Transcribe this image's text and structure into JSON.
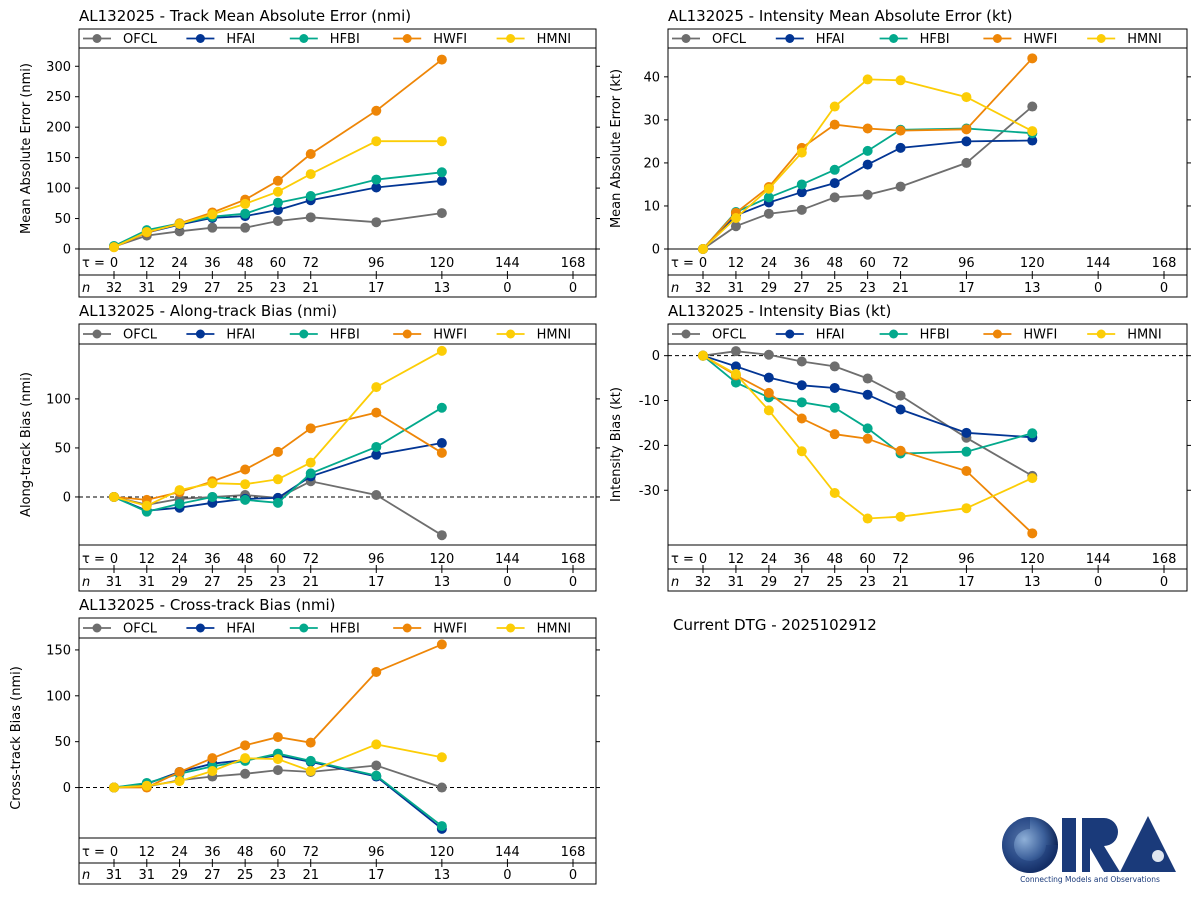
{
  "storm": "AL132025",
  "dtg_label": "Current DTG - 2025102912",
  "logo": {
    "name": "CIRA",
    "tagline": "Connecting Models and Observations"
  },
  "legend": [
    {
      "name": "OFCL",
      "color": "#6e6e6e"
    },
    {
      "name": "HFAI",
      "color": "#023594"
    },
    {
      "name": "HFBI",
      "color": "#03a98c"
    },
    {
      "name": "HWFI",
      "color": "#ee8607"
    },
    {
      "name": "HMNI",
      "color": "#fccd06"
    }
  ],
  "chart_data": [
    {
      "id": "track-mae",
      "type": "line",
      "title": "AL132025 - Track Mean Absolute Error (nmi)",
      "ylabel": "Mean Absolute Error (nmi)",
      "xlabel": "τ",
      "x": [
        0,
        12,
        24,
        36,
        48,
        60,
        72,
        96,
        120
      ],
      "xticks": [
        0,
        12,
        24,
        36,
        48,
        60,
        72,
        96,
        120,
        144,
        168
      ],
      "n": [
        32,
        31,
        29,
        27,
        25,
        23,
        21,
        17,
        13,
        0,
        0
      ],
      "xlim": [
        0,
        168
      ],
      "ylim": [
        0,
        330
      ],
      "yticks": [
        0,
        50,
        100,
        150,
        200,
        250,
        300
      ],
      "zero_line": false,
      "series": [
        {
          "name": "OFCL",
          "values": [
            4,
            22,
            29,
            35,
            35,
            46,
            52,
            44,
            59
          ]
        },
        {
          "name": "HFAI",
          "values": [
            4,
            27,
            40,
            51,
            54,
            64,
            80,
            101,
            112
          ]
        },
        {
          "name": "HFBI",
          "values": [
            5,
            31,
            42,
            53,
            58,
            76,
            87,
            114,
            126
          ]
        },
        {
          "name": "HWFI",
          "values": [
            3,
            27,
            42,
            60,
            81,
            112,
            156,
            227,
            311
          ]
        },
        {
          "name": "HMNI",
          "values": [
            3,
            28,
            41,
            57,
            74,
            94,
            123,
            177,
            177
          ]
        }
      ]
    },
    {
      "id": "intensity-mae",
      "type": "line",
      "title": "AL132025 - Intensity Mean Absolute Error (kt)",
      "ylabel": "Mean Absolute Error (kt)",
      "xlabel": "τ",
      "x": [
        0,
        12,
        24,
        36,
        48,
        60,
        72,
        96,
        120
      ],
      "xticks": [
        0,
        12,
        24,
        36,
        48,
        60,
        72,
        96,
        120,
        144,
        168
      ],
      "n": [
        32,
        31,
        29,
        27,
        25,
        23,
        21,
        17,
        13,
        0,
        0
      ],
      "xlim": [
        0,
        168
      ],
      "ylim": [
        0,
        46.7
      ],
      "yticks": [
        0,
        10,
        20,
        30,
        40
      ],
      "zero_line": false,
      "series": [
        {
          "name": "OFCL",
          "values": [
            0,
            5.3,
            8.2,
            9.1,
            12.0,
            12.6,
            14.5,
            20.0,
            33.1
          ]
        },
        {
          "name": "HFAI",
          "values": [
            0,
            7.8,
            10.8,
            13.2,
            15.3,
            19.6,
            23.5,
            25.0,
            25.2
          ]
        },
        {
          "name": "HFBI",
          "values": [
            0,
            8.6,
            12.0,
            15.0,
            18.4,
            22.8,
            27.7,
            28.0,
            26.9
          ]
        },
        {
          "name": "HWFI",
          "values": [
            0,
            8.4,
            14.4,
            23.5,
            28.9,
            28.0,
            27.5,
            27.8,
            44.3
          ]
        },
        {
          "name": "HMNI",
          "values": [
            0,
            7.2,
            14.0,
            22.4,
            33.1,
            39.4,
            39.2,
            35.3,
            27.4
          ]
        }
      ]
    },
    {
      "id": "along-track-bias",
      "type": "line",
      "title": "AL132025 - Along-track Bias (nmi)",
      "ylabel": "Along-track Bias (nmi)",
      "xlabel": "τ",
      "x": [
        0,
        12,
        24,
        36,
        48,
        60,
        72,
        96,
        120
      ],
      "xticks": [
        0,
        12,
        24,
        36,
        48,
        60,
        72,
        96,
        120,
        144,
        168
      ],
      "n": [
        31,
        31,
        29,
        27,
        25,
        23,
        21,
        17,
        13,
        0,
        0
      ],
      "xlim": [
        0,
        168
      ],
      "ylim": [
        -49,
        156
      ],
      "yticks": [
        0,
        50,
        100
      ],
      "zero_line": true,
      "series": [
        {
          "name": "OFCL",
          "values": [
            0,
            -8,
            -2,
            0,
            2,
            -1,
            16,
            2,
            -39
          ]
        },
        {
          "name": "HFAI",
          "values": [
            0,
            -14,
            -11,
            -6,
            -2,
            -1,
            21,
            43,
            55
          ]
        },
        {
          "name": "HFBI",
          "values": [
            0,
            -15,
            -7,
            0,
            -3,
            -6,
            24,
            51,
            91
          ]
        },
        {
          "name": "HWFI",
          "values": [
            0,
            -3,
            5,
            16,
            28,
            46,
            70,
            86,
            45
          ]
        },
        {
          "name": "HMNI",
          "values": [
            0,
            -9,
            7,
            14,
            13,
            18,
            35,
            112,
            149
          ]
        }
      ]
    },
    {
      "id": "intensity-bias",
      "type": "line",
      "title": "AL132025 - Intensity Bias (kt)",
      "ylabel": "Intensity Bias (kt)",
      "xlabel": "τ",
      "x": [
        0,
        12,
        24,
        36,
        48,
        60,
        72,
        96,
        120
      ],
      "xticks": [
        0,
        12,
        24,
        36,
        48,
        60,
        72,
        96,
        120,
        144,
        168
      ],
      "n": [
        32,
        31,
        29,
        27,
        25,
        23,
        21,
        17,
        13,
        0,
        0
      ],
      "xlim": [
        0,
        168
      ],
      "ylim": [
        -42.2,
        2.6
      ],
      "yticks": [
        -30,
        -20,
        -10,
        0
      ],
      "zero_line": true,
      "series": [
        {
          "name": "OFCL",
          "values": [
            0,
            1.0,
            0.2,
            -1.3,
            -2.4,
            -5.1,
            -8.9,
            -18.3,
            -26.8
          ]
        },
        {
          "name": "HFAI",
          "values": [
            0,
            -2.4,
            -4.9,
            -6.6,
            -7.2,
            -8.7,
            -12.0,
            -17.2,
            -18.2
          ]
        },
        {
          "name": "HFBI",
          "values": [
            0,
            -6.0,
            -9.3,
            -10.4,
            -11.6,
            -16.2,
            -21.8,
            -21.4,
            -17.3
          ]
        },
        {
          "name": "HWFI",
          "values": [
            0,
            -4.4,
            -8.3,
            -14.0,
            -17.5,
            -18.5,
            -21.2,
            -25.7,
            -39.6
          ]
        },
        {
          "name": "HMNI",
          "values": [
            0,
            -4.1,
            -12.2,
            -21.3,
            -30.6,
            -36.3,
            -35.9,
            -34.0,
            -27.3
          ]
        }
      ]
    },
    {
      "id": "cross-track-bias",
      "type": "line",
      "title": "AL132025 - Cross-track Bias (nmi)",
      "ylabel": "Cross-track Bias (nmi)",
      "xlabel": "τ",
      "x": [
        0,
        12,
        24,
        36,
        48,
        60,
        72,
        96,
        120
      ],
      "xticks": [
        0,
        12,
        24,
        36,
        48,
        60,
        72,
        96,
        120,
        144,
        168
      ],
      "n": [
        31,
        31,
        29,
        27,
        25,
        23,
        21,
        17,
        13,
        0,
        0
      ],
      "xlim": [
        0,
        168
      ],
      "ylim": [
        -55,
        163
      ],
      "yticks": [
        0,
        50,
        100,
        150
      ],
      "zero_line": true,
      "series": [
        {
          "name": "OFCL",
          "values": [
            0,
            1,
            8,
            12,
            15,
            19,
            17,
            24,
            0
          ]
        },
        {
          "name": "HFAI",
          "values": [
            0,
            4,
            17,
            26,
            30,
            35,
            28,
            12,
            -45
          ]
        },
        {
          "name": "HFBI",
          "values": [
            0,
            5,
            15,
            23,
            29,
            37,
            29,
            13,
            -42
          ]
        },
        {
          "name": "HWFI",
          "values": [
            0,
            0,
            17,
            32,
            46,
            55,
            49,
            126,
            156
          ]
        },
        {
          "name": "HMNI",
          "values": [
            0,
            2,
            7,
            18,
            32,
            31,
            18,
            47,
            33
          ]
        }
      ]
    }
  ]
}
